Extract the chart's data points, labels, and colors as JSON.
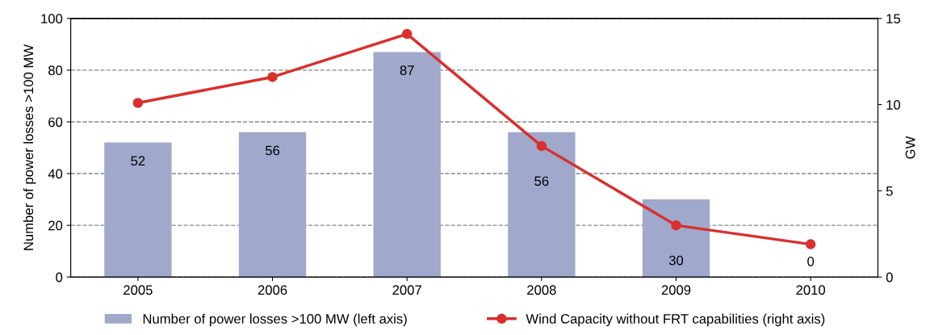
{
  "chart_data": {
    "type": "bar",
    "categories": [
      "2005",
      "2006",
      "2007",
      "2008",
      "2009",
      "2010"
    ],
    "ylabel": "Number of power losses >100 MW",
    "y2label": "GW",
    "series": [
      {
        "name": "Number of power losses >100 MW (left axis)",
        "color": "#a0a8cc",
        "values": [
          52,
          56,
          87,
          56,
          30,
          0
        ],
        "value_labels": [
          "52",
          "56",
          "87",
          "56",
          "30",
          "0"
        ]
      },
      {
        "name": "Wind Capacity without FRT capabilities (right axis)",
        "type": "line",
        "axis": "y2",
        "color": "#d9302e",
        "marker": "circle",
        "values": [
          10.1,
          11.6,
          14.1,
          7.6,
          3.0,
          1.9
        ]
      }
    ],
    "ylim": [
      0,
      100
    ],
    "yticks": [
      0,
      20,
      40,
      60,
      80,
      100
    ],
    "y2lim": [
      0,
      15
    ],
    "y2ticks": [
      0,
      5,
      10,
      15
    ],
    "grid": "y",
    "legend": "bottom"
  }
}
